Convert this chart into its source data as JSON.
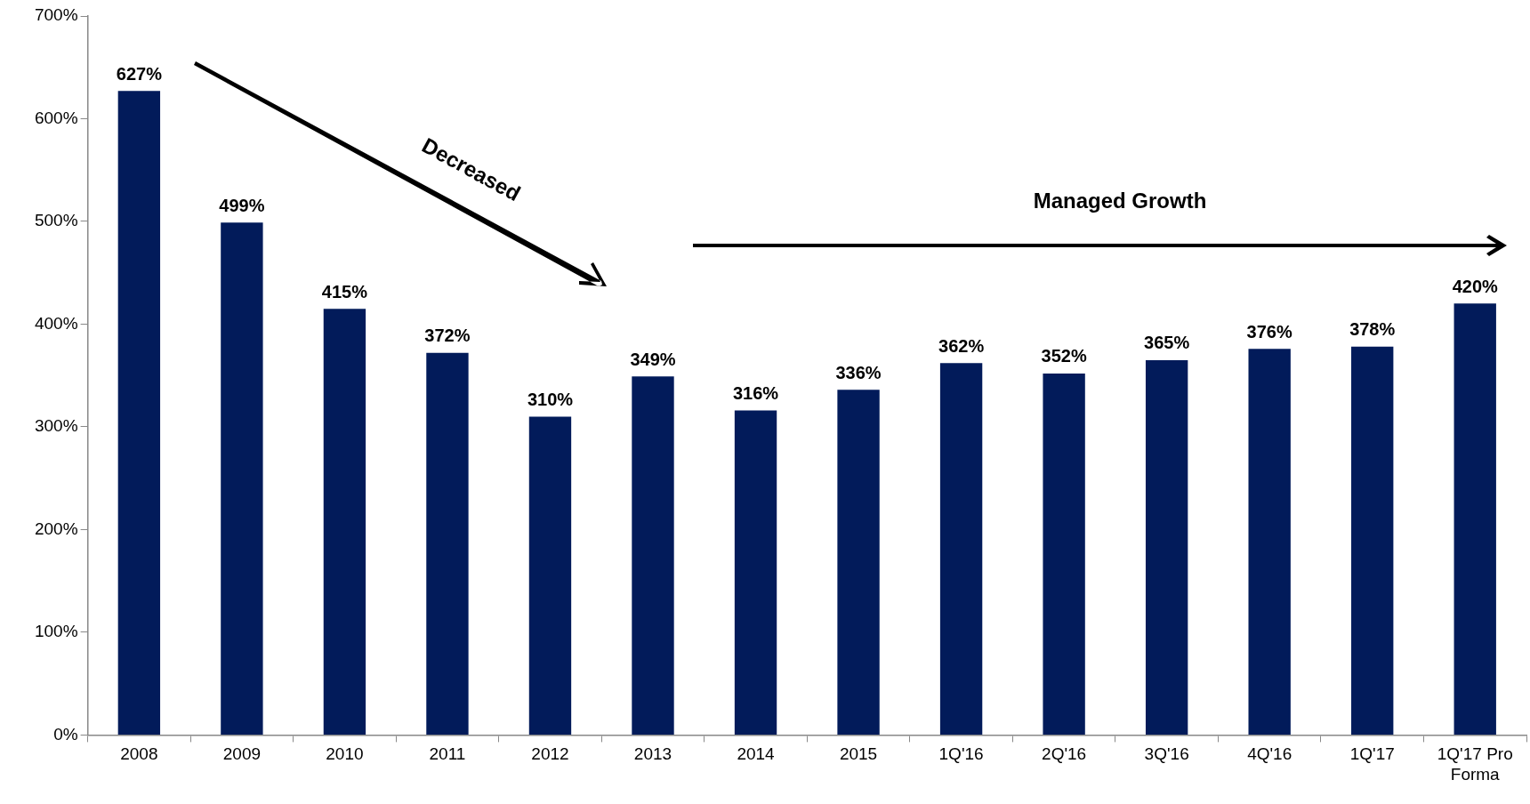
{
  "chart_data": {
    "type": "bar",
    "categories": [
      "2008",
      "2009",
      "2010",
      "2011",
      "2012",
      "2013",
      "2014",
      "2015",
      "1Q'16",
      "2Q'16",
      "3Q'16",
      "4Q'16",
      "1Q'17",
      "1Q'17 Pro Forma"
    ],
    "values": [
      627,
      499,
      415,
      372,
      310,
      349,
      316,
      336,
      362,
      352,
      365,
      376,
      378,
      420
    ],
    "value_labels": [
      "627%",
      "499%",
      "415%",
      "372%",
      "310%",
      "349%",
      "316%",
      "336%",
      "362%",
      "352%",
      "365%",
      "376%",
      "378%",
      "420%"
    ],
    "color": "#021b5a",
    "ylim": [
      0,
      700
    ],
    "yticks": [
      {
        "value": 0,
        "label": "0%"
      },
      {
        "value": 100,
        "label": "100%"
      },
      {
        "value": 200,
        "label": "200%"
      },
      {
        "value": 300,
        "label": "300%"
      },
      {
        "value": 400,
        "label": "400%"
      },
      {
        "value": 500,
        "label": "500%"
      },
      {
        "value": 600,
        "label": "600%"
      },
      {
        "value": 700,
        "label": "700%"
      }
    ],
    "grid": false,
    "legend": false,
    "annotations": [
      "Decreased",
      "Managed Growth"
    ]
  }
}
